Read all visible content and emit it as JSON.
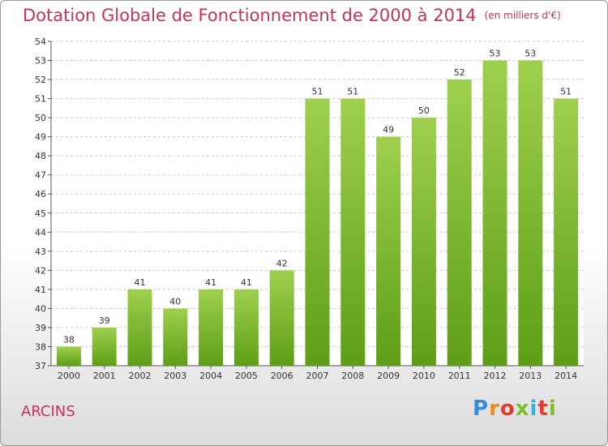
{
  "chart_data": {
    "type": "bar",
    "title": "Dotation Globale de Fonctionnement de 2000 à 2014",
    "subtitle": "(en milliers d'€)",
    "categories": [
      "2000",
      "2001",
      "2002",
      "2003",
      "2004",
      "2005",
      "2006",
      "2007",
      "2008",
      "2009",
      "2010",
      "2011",
      "2012",
      "2013",
      "2014"
    ],
    "values": [
      38,
      39,
      41,
      40,
      41,
      41,
      42,
      51,
      51,
      49,
      50,
      52,
      53,
      53,
      51
    ],
    "ylim": [
      37,
      54
    ],
    "yticks": [
      37,
      38,
      39,
      40,
      41,
      42,
      43,
      44,
      45,
      46,
      47,
      48,
      49,
      50,
      51,
      52,
      53,
      54
    ],
    "grid": true,
    "bar_color": "#7cbf2a"
  },
  "footer": {
    "commune": "ARCINS",
    "logo_text": "Proxiti"
  }
}
